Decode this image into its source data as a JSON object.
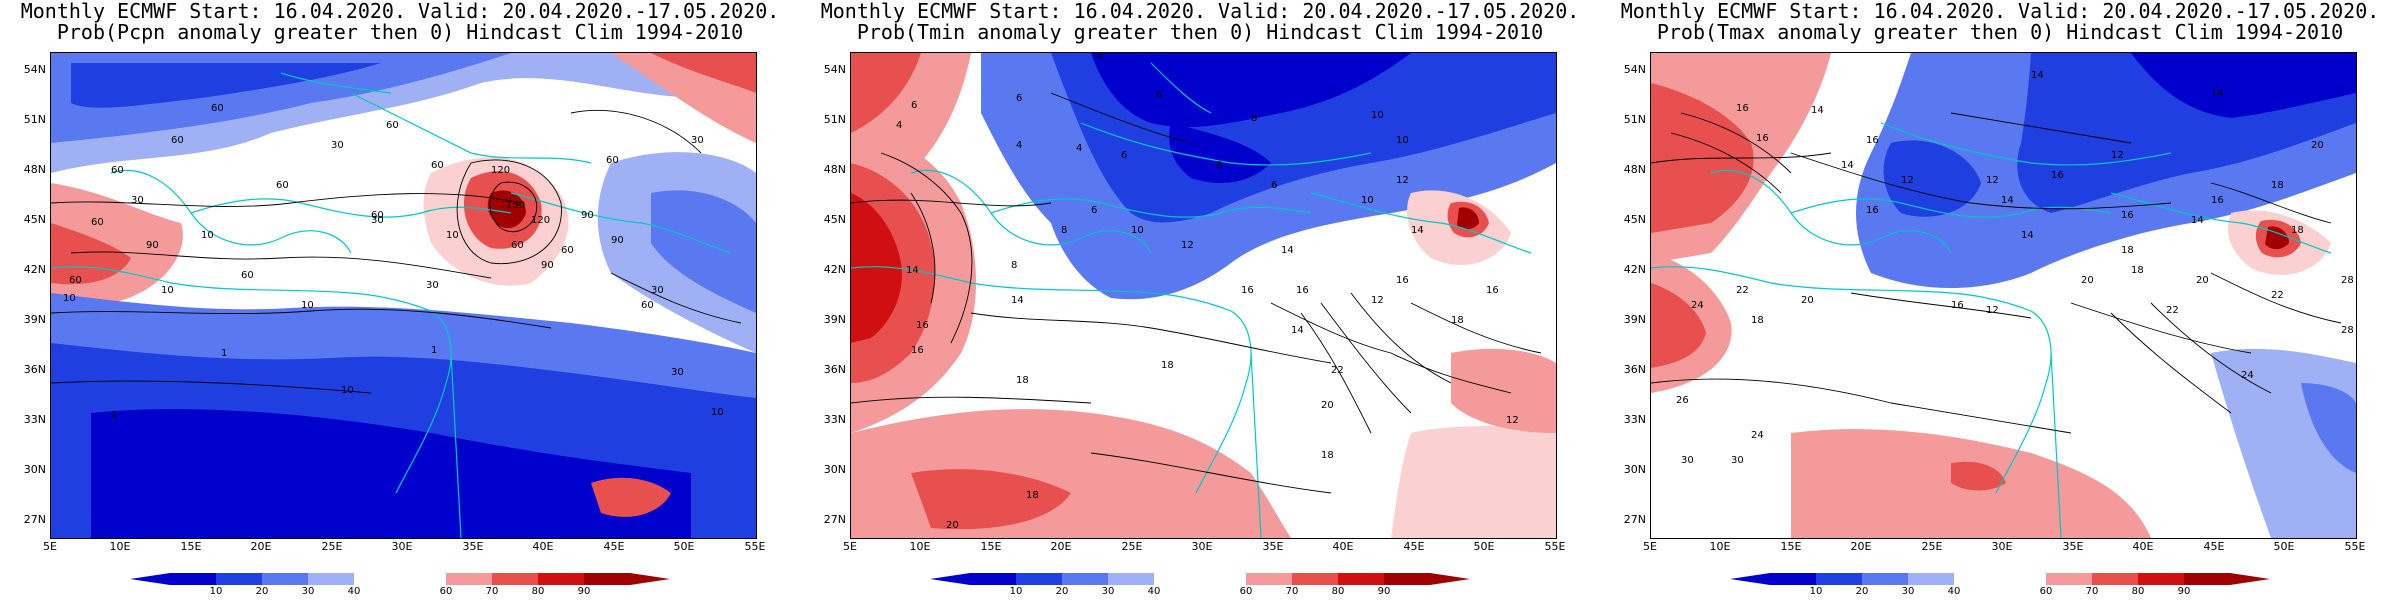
{
  "header": {
    "line1": "Monthly ECMWF Start: 16.04.2020. Valid: 20.04.2020.-17.05.2020."
  },
  "panels": [
    {
      "title2": "Prob(Pcpn anomaly greater then 0) Hindcast Clim 1994-2010",
      "contour_labels": [
        "60",
        "60",
        "60",
        "30",
        "60",
        "60",
        "60",
        "10",
        "60",
        "30",
        "90",
        "60",
        "120",
        "150",
        "120",
        "60",
        "90",
        "90",
        "60",
        "90",
        "30",
        "60",
        "60",
        "10",
        "60",
        "30",
        "10",
        "10",
        "1",
        "30",
        "10",
        "10",
        "1",
        "1",
        "30",
        "60",
        "10",
        "30"
      ]
    },
    {
      "title2": "Prob(Tmin anomaly greater then 0) Hindcast Clim 1994-2010",
      "contour_labels": [
        "4",
        "6",
        "6",
        "6",
        "4",
        "4",
        "6",
        "8",
        "8",
        "10",
        "6",
        "10",
        "12",
        "4",
        "6",
        "8",
        "12",
        "14",
        "16",
        "10",
        "8",
        "14",
        "16",
        "18",
        "20",
        "22",
        "16",
        "18",
        "14",
        "12",
        "16",
        "18",
        "20",
        "18",
        "16",
        "14",
        "10",
        "12",
        "14",
        "16",
        "18"
      ]
    },
    {
      "title2": "Prob(Tmax anomaly greater then 0) Hindcast Clim 1994-2010",
      "contour_labels": [
        "14",
        "14",
        "16",
        "16",
        "14",
        "12",
        "14",
        "16",
        "12",
        "16",
        "18",
        "20",
        "16",
        "14",
        "18",
        "22",
        "24",
        "26",
        "28",
        "30",
        "24",
        "22",
        "20",
        "18",
        "16",
        "14",
        "12",
        "16",
        "18",
        "20",
        "22",
        "24",
        "28",
        "30",
        "18",
        "20",
        "16",
        "14",
        "12"
      ]
    }
  ],
  "axes": {
    "y_ticks": [
      "54N",
      "51N",
      "48N",
      "45N",
      "42N",
      "39N",
      "36N",
      "33N",
      "30N",
      "27N"
    ],
    "x_ticks": [
      "5E",
      "10E",
      "15E",
      "20E",
      "25E",
      "30E",
      "35E",
      "40E",
      "45E",
      "50E",
      "55E"
    ],
    "lat_range": [
      25,
      55
    ],
    "lon_range": [
      5,
      55
    ]
  },
  "colorbar": {
    "labels": [
      "10",
      "20",
      "30",
      "40",
      "60",
      "70",
      "80",
      "90"
    ],
    "colors": [
      "#0000cc",
      "#1f3fe0",
      "#5a78f0",
      "#9fb0f5",
      "#d8dffa",
      "#ffffff",
      "#fbd0d0",
      "#f59a9a",
      "#e85050",
      "#d01010",
      "#a00000"
    ]
  },
  "map_colors": {
    "coast": "#00c8c8",
    "contour": "#000000"
  }
}
